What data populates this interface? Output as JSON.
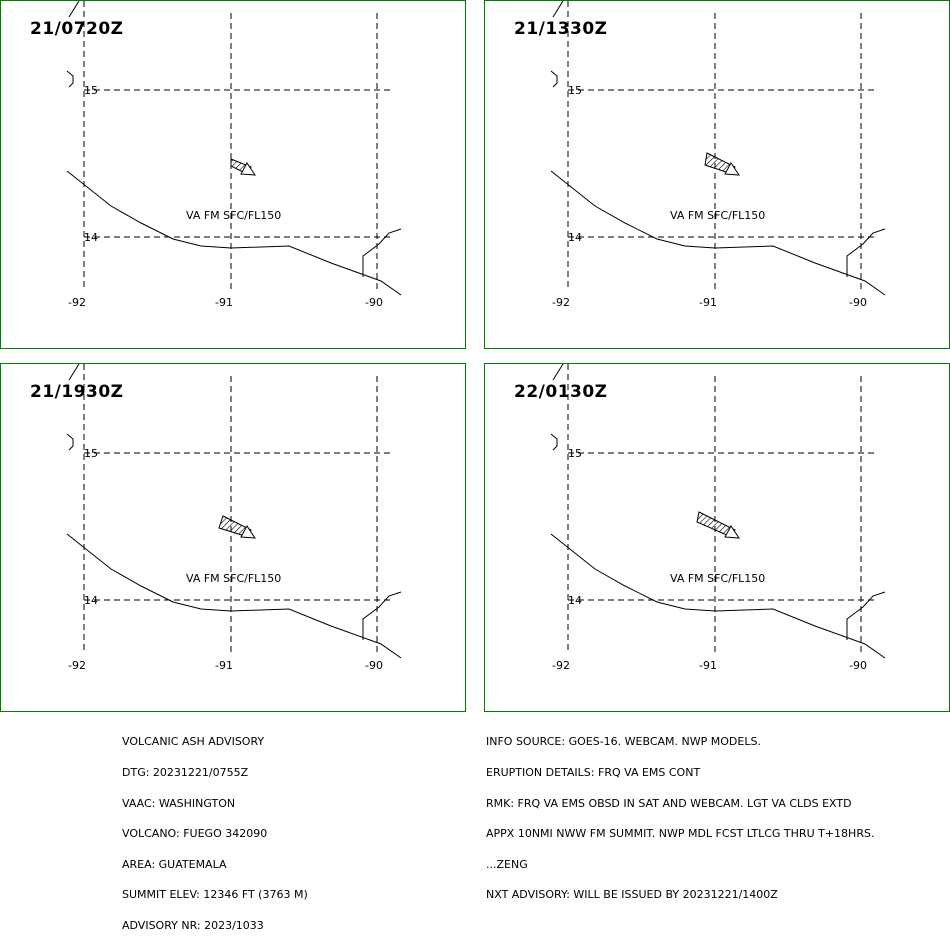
{
  "panels": [
    {
      "time": "21/0720Z",
      "ash_label": "VA FM SFC/FL150"
    },
    {
      "time": "21/1330Z",
      "ash_label": "VA FM SFC/FL150"
    },
    {
      "time": "21/1930Z",
      "ash_label": "VA FM SFC/FL150"
    },
    {
      "time": "22/0130Z",
      "ash_label": "VA FM SFC/FL150"
    }
  ],
  "grid": {
    "lat_labels": [
      "15",
      "14"
    ],
    "lon_labels": [
      "-92",
      "-91",
      "-90"
    ]
  },
  "advisory": {
    "left_lines": [
      "VOLCANIC ASH ADVISORY",
      "DTG: 20231221/0755Z",
      "VAAC: WASHINGTON",
      "VOLCANO: FUEGO 342090",
      "AREA: GUATEMALA",
      "SUMMIT ELEV: 12346 FT (3763 M)",
      "ADVISORY NR: 2023/1033"
    ],
    "right_lines": [
      "INFO SOURCE: GOES-16. WEBCAM. NWP MODELS.",
      "ERUPTION DETAILS: FRQ VA EMS CONT",
      "RMK: FRQ VA EMS OBSD IN SAT AND WEBCAM. LGT VA CLDS EXTD",
      "APPX 10NMI NWW FM SUMMIT. NWP MDL FCST LTLCG THRU T+18HRS.",
      "...ZENG",
      "NXT ADVISORY: WILL BE ISSUED BY 20231221/1400Z"
    ]
  },
  "colors": {
    "panel_border": "#008000",
    "line": "#000000"
  }
}
